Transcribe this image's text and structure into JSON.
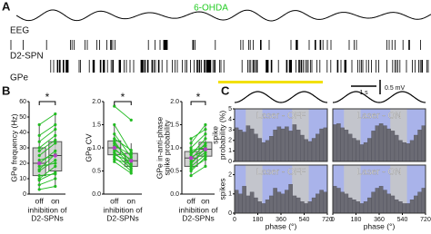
{
  "panel_a": {
    "label": "A",
    "condition": "6-OHDA",
    "traces": [
      "EEG",
      "D2-SPN",
      "GPe"
    ],
    "scale_time": "1 s",
    "scale_voltage": "0.5 mV"
  },
  "panel_b": {
    "label": "B"
  },
  "panel_c": {
    "label": "C"
  },
  "chart_data": [
    {
      "type": "box",
      "ylabel": [
        "GPe frequency (Hz)"
      ],
      "ylim": [
        0,
        60
      ],
      "yticks": [
        0,
        10,
        20,
        30,
        40,
        50,
        60
      ],
      "categories": [
        "off",
        "on"
      ],
      "xlabel": [
        "inhibition of",
        "D2-SPNs"
      ],
      "significance": "*",
      "line_color": "#22bb22",
      "median_color": "#b040c0",
      "pairs": [
        [
          3,
          5
        ],
        [
          6,
          10
        ],
        [
          9,
          14
        ],
        [
          12,
          13
        ],
        [
          15,
          22
        ],
        [
          18,
          20
        ],
        [
          20,
          28
        ],
        [
          22,
          25
        ],
        [
          25,
          33
        ],
        [
          28,
          35
        ],
        [
          30,
          38
        ],
        [
          34,
          42
        ],
        [
          38,
          45
        ],
        [
          45,
          52
        ],
        [
          10,
          18
        ],
        [
          16,
          26
        ]
      ],
      "box": [
        {
          "low": 3,
          "q1": 12,
          "median": 20,
          "q3": 30,
          "high": 45
        },
        {
          "low": 5,
          "q1": 15,
          "median": 25,
          "q3": 34,
          "high": 52
        }
      ]
    },
    {
      "type": "box",
      "ylabel": [
        "GPe CV"
      ],
      "ylim": [
        0,
        2
      ],
      "yticks": [
        {
          "value": 0,
          "label": "0.0"
        },
        {
          "value": 0.5,
          "label": "0.5"
        },
        {
          "value": 1,
          "label": "1.0"
        },
        {
          "value": 1.5,
          "label": "1.5"
        },
        {
          "value": 2,
          "label": "2.0"
        }
      ],
      "categories": [
        "off",
        "on"
      ],
      "xlabel": [
        "inhibition of",
        "D2-SPNs"
      ],
      "significance": "*",
      "line_color": "#22bb22",
      "median_color": "#b040c0",
      "pairs": [
        [
          1.9,
          1.6
        ],
        [
          1.5,
          0.9
        ],
        [
          1.3,
          0.8
        ],
        [
          1.2,
          0.95
        ],
        [
          1.1,
          0.7
        ],
        [
          1.05,
          0.85
        ],
        [
          1.0,
          0.6
        ],
        [
          0.95,
          0.75
        ],
        [
          0.9,
          0.55
        ],
        [
          0.85,
          0.7
        ],
        [
          0.8,
          0.5
        ],
        [
          0.75,
          0.65
        ],
        [
          1.15,
          0.6
        ],
        [
          0.7,
          0.45
        ]
      ],
      "box": [
        {
          "low": 0.7,
          "q1": 0.85,
          "median": 1.0,
          "q3": 1.15,
          "high": 1.5
        },
        {
          "low": 0.45,
          "q1": 0.6,
          "median": 0.72,
          "q3": 0.88,
          "high": 1.1
        }
      ]
    },
    {
      "type": "box",
      "ylabel": [
        "GPe in-anti-phase",
        "spike probability"
      ],
      "ylim": [
        0,
        2
      ],
      "yticks": [
        {
          "value": 0,
          "label": "0.0"
        },
        {
          "value": 0.5,
          "label": "0.5"
        },
        {
          "value": 1,
          "label": "1.0"
        },
        {
          "value": 1.5,
          "label": "1.5"
        },
        {
          "value": 2,
          "label": "2.0"
        }
      ],
      "categories": [
        "off",
        "on"
      ],
      "xlabel": [
        "inhibition of",
        "D2-SPNs"
      ],
      "significance": "*",
      "line_color": "#22bb22",
      "median_color": "#b040c0",
      "pairs": [
        [
          0.4,
          0.6
        ],
        [
          0.5,
          0.8
        ],
        [
          0.6,
          0.85
        ],
        [
          0.65,
          1.0
        ],
        [
          0.7,
          0.9
        ],
        [
          0.75,
          1.1
        ],
        [
          0.8,
          0.95
        ],
        [
          0.85,
          1.2
        ],
        [
          0.9,
          1.05
        ],
        [
          1.0,
          1.3
        ],
        [
          1.1,
          1.5
        ],
        [
          0.55,
          0.75
        ],
        [
          0.95,
          1.0
        ],
        [
          1.2,
          1.4
        ]
      ],
      "box": [
        {
          "low": 0.4,
          "q1": 0.6,
          "median": 0.78,
          "q3": 0.92,
          "high": 1.2
        },
        {
          "low": 0.6,
          "q1": 0.82,
          "median": 0.97,
          "q3": 1.12,
          "high": 1.5
        }
      ]
    },
    {
      "type": "histogram",
      "label": "Laser - OFF",
      "ylabel": [
        "spike",
        "probability (%)"
      ],
      "xlim": [
        0,
        720
      ],
      "ylim": [
        0,
        5
      ],
      "yticks": [
        0,
        1,
        2,
        3,
        4,
        5
      ],
      "bins": [
        0,
        30,
        60,
        90,
        120,
        150,
        180,
        210,
        240,
        270,
        300,
        330,
        360,
        390,
        420,
        450,
        480,
        510,
        540,
        570,
        600,
        630,
        660,
        690,
        720
      ],
      "values": [
        3.2,
        3.0,
        2.8,
        3.4,
        3.1,
        2.6,
        2.2,
        1.8,
        2.0,
        2.4,
        3.0,
        3.3,
        3.1,
        3.3,
        2.9,
        3.5,
        3.0,
        2.5,
        2.1,
        1.9,
        2.2,
        2.6,
        3.1,
        3.2
      ]
    },
    {
      "type": "histogram",
      "label": "Laser - ON",
      "xlim": [
        0,
        720
      ],
      "ylim": [
        0,
        5
      ],
      "bins": [
        0,
        30,
        60,
        90,
        120,
        150,
        180,
        210,
        240,
        270,
        300,
        330,
        360,
        390,
        420,
        450,
        480,
        510,
        540,
        570,
        600,
        630,
        660,
        690,
        720
      ],
      "values": [
        3.5,
        3.6,
        3.2,
        3.0,
        2.6,
        2.2,
        2.0,
        1.6,
        1.8,
        2.2,
        2.9,
        3.4,
        3.6,
        3.4,
        3.1,
        2.9,
        2.5,
        2.0,
        1.8,
        1.7,
        2.0,
        2.5,
        3.0,
        3.4
      ]
    },
    {
      "type": "histogram",
      "label": "Laser - OFF",
      "ylabel": [
        "spikes"
      ],
      "xlabel": "phase (°)",
      "xlim": [
        0,
        720
      ],
      "ylim": [
        0,
        2.5
      ],
      "yticks": [
        0,
        1,
        2
      ],
      "xticks": [
        0,
        180,
        360,
        540,
        720
      ],
      "bins": [
        0,
        30,
        60,
        90,
        120,
        150,
        180,
        210,
        240,
        270,
        300,
        330,
        360,
        390,
        420,
        450,
        480,
        510,
        540,
        570,
        600,
        630,
        660,
        690,
        720
      ],
      "values": [
        1.2,
        1.0,
        1.4,
        0.9,
        1.1,
        0.8,
        0.6,
        0.5,
        0.7,
        0.9,
        1.3,
        1.1,
        1.0,
        1.2,
        1.5,
        0.9,
        0.8,
        0.6,
        0.5,
        0.6,
        0.8,
        1.0,
        1.2,
        1.1
      ]
    },
    {
      "type": "histogram",
      "label": "Laser - ON",
      "xlabel": "phase (°)",
      "xlim": [
        0,
        720
      ],
      "ylim": [
        0,
        2.5
      ],
      "xticks": [
        0,
        180,
        360,
        540,
        720
      ],
      "bins": [
        0,
        30,
        60,
        90,
        120,
        150,
        180,
        210,
        240,
        270,
        300,
        330,
        360,
        390,
        420,
        450,
        480,
        510,
        540,
        570,
        600,
        630,
        660,
        690,
        720
      ],
      "values": [
        1.4,
        1.3,
        1.1,
        1.0,
        0.8,
        0.7,
        0.6,
        0.5,
        0.6,
        0.8,
        1.1,
        1.3,
        1.4,
        1.2,
        1.0,
        0.9,
        0.7,
        0.6,
        0.5,
        0.5,
        0.7,
        0.9,
        1.1,
        1.3
      ]
    }
  ]
}
